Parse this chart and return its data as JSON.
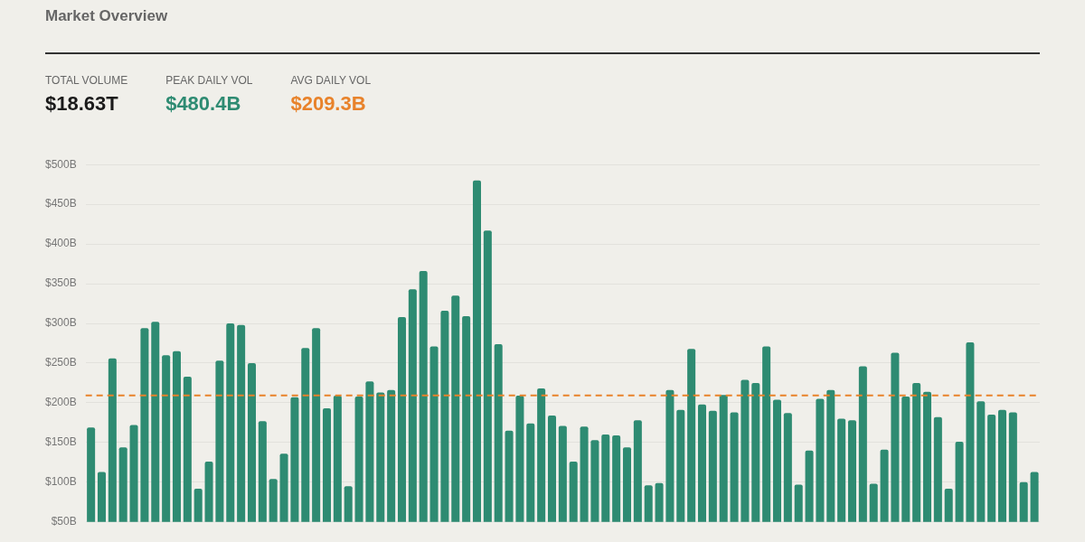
{
  "chart_data": {
    "type": "bar",
    "title": "Market Overview",
    "annotations": [
      "TOTAL VOLUME",
      "$18.63T",
      "PEAK DAILY VOL",
      "$480.4B",
      "AVG DAILY VOL",
      "$209.3B"
    ],
    "categories": [
      null,
      null,
      null,
      null,
      null,
      null,
      null,
      null,
      null,
      null,
      null,
      null,
      null,
      null,
      null,
      null,
      null,
      null,
      null,
      null,
      null,
      null,
      null,
      null,
      null,
      null,
      null,
      null,
      null,
      null,
      null,
      null,
      null,
      null,
      null,
      null,
      null,
      null,
      null,
      null,
      null,
      null,
      null,
      null,
      null,
      null,
      null,
      null,
      null,
      null,
      null,
      null,
      null,
      null,
      null,
      null,
      null,
      null,
      null,
      null,
      null,
      null,
      null,
      null,
      null,
      null,
      null,
      null,
      null,
      null,
      null,
      null,
      null,
      null,
      null,
      null,
      null,
      null,
      null,
      null,
      null,
      null,
      null,
      null,
      null,
      null,
      null,
      null,
      null
    ],
    "values": [
      169,
      113,
      256,
      144,
      172,
      294,
      302,
      260,
      265,
      233,
      92,
      126,
      253,
      300,
      298,
      250,
      177,
      104,
      136,
      207,
      269,
      294,
      193,
      209,
      95,
      208,
      227,
      213,
      216,
      308,
      343,
      366,
      271,
      316,
      335,
      309,
      480,
      417,
      274,
      165,
      209,
      174,
      218,
      184,
      171,
      126,
      170,
      153,
      160,
      159,
      144,
      178,
      96,
      99,
      216,
      191,
      268,
      198,
      190,
      210,
      188,
      229,
      225,
      271,
      204,
      187,
      97,
      140,
      205,
      216,
      180,
      178,
      246,
      98,
      141,
      263,
      208,
      225,
      214,
      182,
      92,
      151,
      276,
      202,
      185,
      191,
      188,
      100,
      113
    ],
    "color": "#2e8b72",
    "ylim": [
      50,
      500
    ],
    "yticks": [
      {
        "value": 50,
        "label": "$50B"
      },
      {
        "value": 100,
        "label": "$100B"
      },
      {
        "value": 150,
        "label": "$150B"
      },
      {
        "value": 200,
        "label": "$200B"
      },
      {
        "value": 250,
        "label": "$250B"
      },
      {
        "value": 300,
        "label": "$300B"
      },
      {
        "value": 350,
        "label": "$350B"
      },
      {
        "value": 400,
        "label": "$400B"
      },
      {
        "value": 450,
        "label": "$450B"
      },
      {
        "value": 500,
        "label": "$500B"
      }
    ],
    "ref_lines": [
      {
        "axis": "y",
        "value": 209.3,
        "color": "#e8822a",
        "line_style": "dashed"
      }
    ],
    "grid": "y",
    "tick_labels": "y",
    "legend": false
  }
}
